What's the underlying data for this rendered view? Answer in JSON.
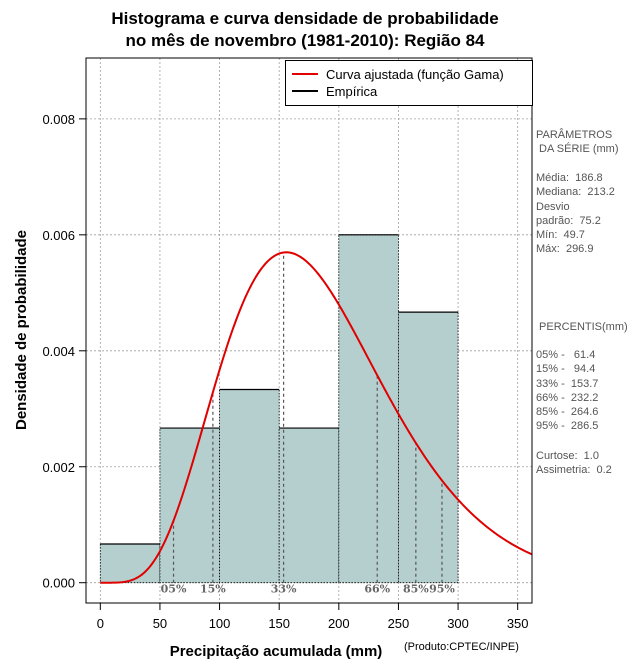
{
  "chart_data": {
    "type": "histogram",
    "title": [
      "Histograma e curva densidade de probabilidade",
      "no mês de novembro (1981-2010): Região 84"
    ],
    "xlabel": "Precipitação acumulada (mm)",
    "ylabel": "Densidade de probabilidade",
    "xlim": [
      -12,
      362
    ],
    "ylim": [
      -0.00035,
      0.00905
    ],
    "x_ticks": [
      "0",
      "50",
      "100",
      "150",
      "200",
      "250",
      "300",
      "350"
    ],
    "y_ticks": [
      "0.000",
      "0.002",
      "0.004",
      "0.006",
      "0.008"
    ],
    "grid": true,
    "bins": [
      {
        "start": 0,
        "end": 50,
        "density": 0.000667
      },
      {
        "start": 50,
        "end": 100,
        "density": 0.002667
      },
      {
        "start": 100,
        "end": 150,
        "density": 0.003333
      },
      {
        "start": 150,
        "end": 200,
        "density": 0.002667
      },
      {
        "start": 200,
        "end": 250,
        "density": 0.006
      },
      {
        "start": 250,
        "end": 300,
        "density": 0.004667
      }
    ],
    "fitted_curve": {
      "name": "Curva ajustada (função Gama)",
      "distribution": "gamma",
      "mode": 156,
      "peak_density": 0.0057,
      "color": "#e00000"
    },
    "empirical": {
      "name": "Empírica",
      "color": "#000000"
    },
    "percentiles": [
      {
        "label": "05%",
        "value": 61.4
      },
      {
        "label": "15%",
        "value": 94.4
      },
      {
        "label": "33%",
        "value": 153.7
      },
      {
        "label": "66%",
        "value": 232.2
      },
      {
        "label": "85%",
        "value": 264.6
      },
      {
        "label": "95%",
        "value": 286.5
      }
    ],
    "legend_position": "top-right",
    "colors": {
      "bars": "#b5cfcf",
      "curve": "#e00000",
      "grid": "#a0a0a0",
      "percentile_lines": "#555555"
    }
  },
  "side_panel": {
    "params_title": "PARÂMETROS\n DA SÉRIE (mm)",
    "params_body": "Média:  186.8\nMediana:  213.2\nDesvio\npadrão:  75.2\nMín:  49.7\nMáx:  296.9",
    "percentis_title": " PERCENTIS(mm)",
    "percentis_body": "05% -   61.4\n15% -   94.4\n33% -  153.7\n66% -  232.2\n85% -  264.6\n95% -  286.5",
    "extra_body": "Curtose:  1.0\nAssimetria:  0.2"
  },
  "credit": "(Produto:CPTEC/INPE)"
}
